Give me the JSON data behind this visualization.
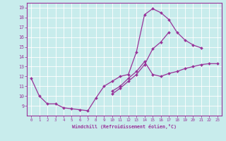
{
  "xlabel": "Windchill (Refroidissement éolien,°C)",
  "bg_color": "#c8ecec",
  "line_color": "#993399",
  "xlim": [
    -0.5,
    23.5
  ],
  "ylim": [
    8.0,
    19.5
  ],
  "xticks": [
    0,
    1,
    2,
    3,
    4,
    5,
    6,
    7,
    8,
    9,
    10,
    11,
    12,
    13,
    14,
    15,
    16,
    17,
    18,
    19,
    20,
    21,
    22,
    23
  ],
  "yticks": [
    9,
    10,
    11,
    12,
    13,
    14,
    15,
    16,
    17,
    18,
    19
  ],
  "line1_x": [
    0,
    1,
    2,
    3,
    4,
    5,
    6,
    7,
    8,
    9,
    10,
    11,
    12,
    13,
    14,
    15,
    16,
    17,
    18,
    19,
    20,
    21
  ],
  "line1_y": [
    11.8,
    10.0,
    9.2,
    9.2,
    8.8,
    8.7,
    8.6,
    8.5,
    9.8,
    11.0,
    11.5,
    12.0,
    12.2,
    14.5,
    18.3,
    18.9,
    18.5,
    17.8,
    16.5,
    15.7,
    15.2,
    14.9
  ],
  "line2_x": [
    10,
    11,
    12,
    13,
    14,
    15,
    16,
    17,
    18,
    19,
    20,
    21,
    22,
    23
  ],
  "line2_y": [
    10.5,
    11.0,
    11.8,
    12.5,
    13.5,
    12.2,
    12.0,
    12.3,
    12.5,
    12.8,
    13.0,
    13.2,
    13.3,
    13.3
  ],
  "line3_x": [
    10,
    11,
    12,
    13,
    14,
    15,
    16,
    17
  ],
  "line3_y": [
    10.2,
    10.8,
    11.5,
    12.2,
    13.2,
    14.8,
    15.5,
    16.5
  ]
}
